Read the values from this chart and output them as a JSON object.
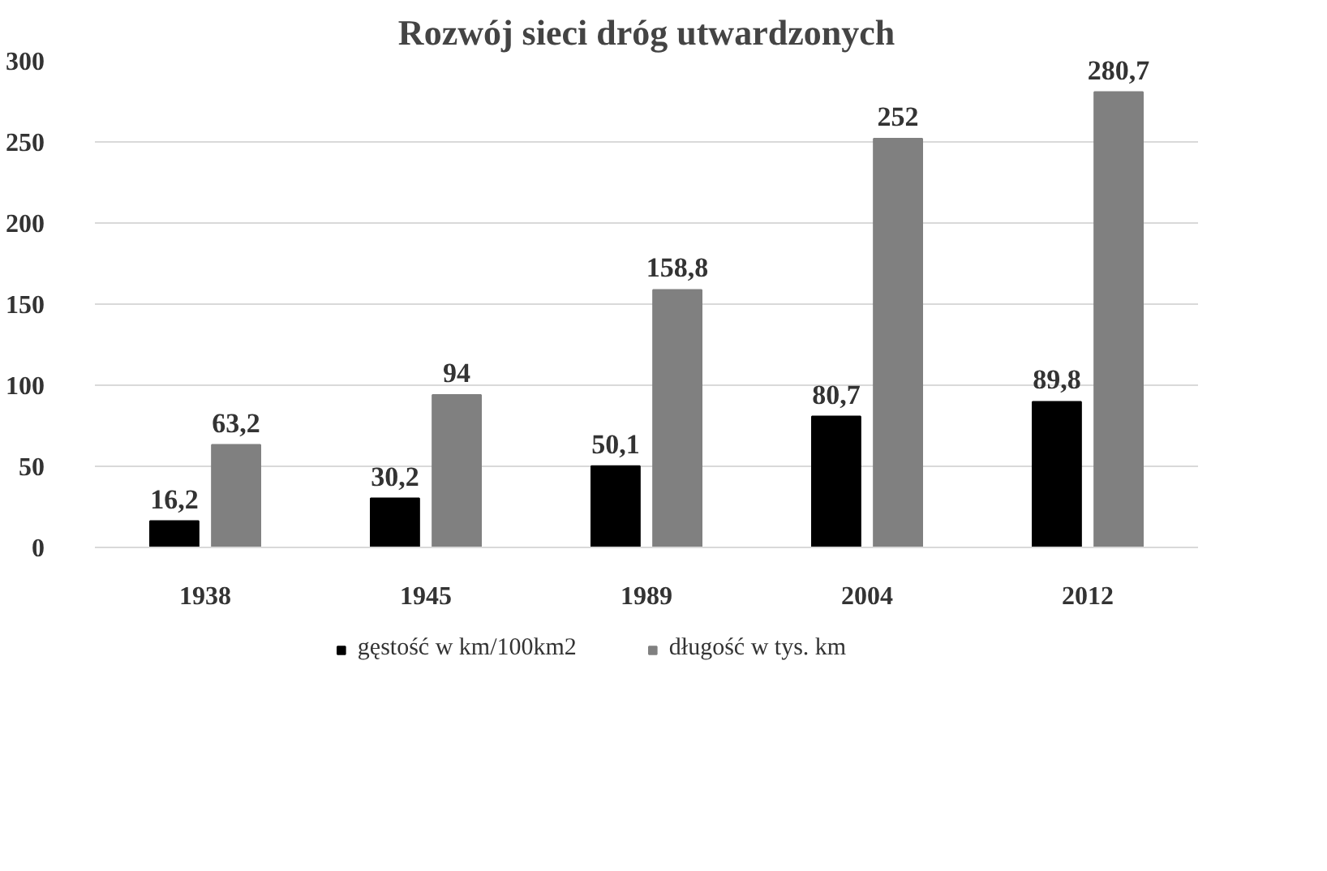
{
  "chart_data": {
    "type": "bar",
    "title": "Rozwój sieci dróg utwardzonych",
    "categories": [
      "1938",
      "1945",
      "1989",
      "2004",
      "2012"
    ],
    "series": [
      {
        "name": "gęstość w km/100km2",
        "color": "#000000",
        "values": [
          16.2,
          30.2,
          50.1,
          80.7,
          89.8
        ],
        "value_labels": [
          "16,2",
          "30,2",
          "50,1",
          "80,7",
          "89,8"
        ]
      },
      {
        "name": "długość w tys. km",
        "color": "#808080",
        "values": [
          63.2,
          94,
          158.8,
          252,
          280.7
        ],
        "value_labels": [
          "63,2",
          "94",
          "158,8",
          "252",
          "280,7"
        ]
      }
    ],
    "ylim": [
      0,
      300
    ],
    "yticks": [
      0,
      50,
      100,
      150,
      200,
      250,
      300
    ],
    "grid": "y",
    "legend": "bottom"
  }
}
